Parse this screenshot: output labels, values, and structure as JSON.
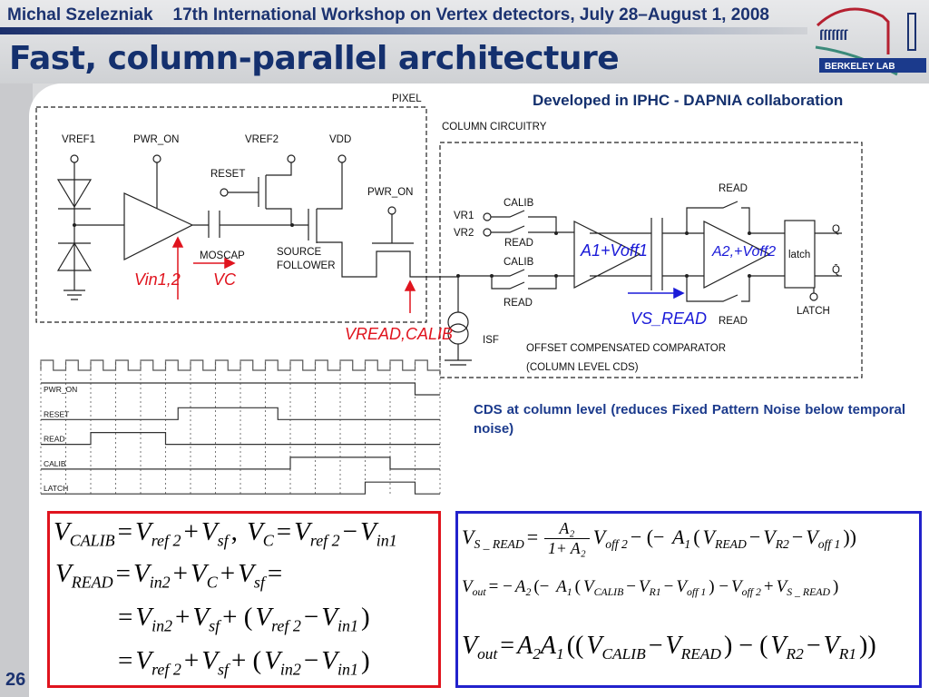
{
  "header": {
    "author": "Michal Szelezniak",
    "event": "17th International Workshop on Vertex detectors, July 28–August 1, 2008",
    "title": "Fast, column-parallel architecture",
    "logo_text": "BERKELEY LAB"
  },
  "slide_number": "26",
  "collaboration": "Developed in IPHC - DAPNIA collaboration",
  "cds_note": "CDS at column level (reduces Fixed Pattern Noise below temporal noise)",
  "pixel": {
    "box_label": "PIXEL",
    "vref1": "VREF1",
    "pwr_on": "PWR_ON",
    "vref2": "VREF2",
    "vdd": "VDD",
    "reset": "RESET",
    "pwr_on2": "PWR_ON",
    "moscap": "MOSCAP",
    "sf1": "SOURCE",
    "sf2": "FOLLOWER",
    "vin": "Vin1,2",
    "vc": "VC",
    "vread": "VREAD,CALIB"
  },
  "column": {
    "box_label": "COLUMN CIRCUITRY",
    "vr1": "VR1",
    "vr2": "VR2",
    "calib1": "CALIB",
    "read1": "READ",
    "calib2": "CALIB",
    "read2": "READ",
    "amp1": "A1+Voff1",
    "amp2": "A2,+Voff2",
    "read_top": "READ",
    "read_bot": "READ",
    "latch": "latch",
    "q": "Q",
    "qbar": "Q̄",
    "latch_in": "LATCH",
    "vsread": "VS_READ",
    "isf": "ISF",
    "comp1": "OFFSET COMPENSATED COMPARATOR",
    "comp2": "(COLUMN LEVEL CDS)"
  },
  "timing": {
    "clock_periods": 16,
    "signals": [
      {
        "name": "PWR_ON",
        "high": [
          [
            0,
            15
          ]
        ]
      },
      {
        "name": "RESET",
        "high": [
          [
            5.5,
            9.5
          ]
        ]
      },
      {
        "name": "READ",
        "high": [
          [
            2,
            5
          ]
        ]
      },
      {
        "name": "CALIB",
        "high": [
          [
            10,
            14
          ]
        ]
      },
      {
        "name": "LATCH",
        "high": [
          [
            13,
            15
          ]
        ]
      }
    ]
  },
  "equations_left": [
    [
      {
        "v": "V",
        "s": "CALIB"
      },
      {
        "o": "="
      },
      {
        "v": "V",
        "s": "ref 2"
      },
      {
        "o": "+"
      },
      {
        "v": "V",
        "s": "sf"
      },
      {
        "o": ", "
      },
      {
        "v": "V",
        "s": "C"
      },
      {
        "o": "="
      },
      {
        "v": "V",
        "s": "ref 2"
      },
      {
        "o": "−"
      },
      {
        "v": "V",
        "s": "in1"
      }
    ],
    [
      {
        "v": "V",
        "s": "READ"
      },
      {
        "o": "="
      },
      {
        "v": "V",
        "s": "in2"
      },
      {
        "o": "+"
      },
      {
        "v": "V",
        "s": "C"
      },
      {
        "o": "+"
      },
      {
        "v": "V",
        "s": "sf"
      },
      {
        "o": "="
      }
    ],
    [
      {
        "o": "="
      },
      {
        "v": "V",
        "s": "in2"
      },
      {
        "o": "+"
      },
      {
        "v": "V",
        "s": "sf"
      },
      {
        "o": "+ ("
      },
      {
        "v": "V",
        "s": "ref 2"
      },
      {
        "o": "−"
      },
      {
        "v": "V",
        "s": "in1"
      },
      {
        "o": ")"
      }
    ],
    [
      {
        "o": "="
      },
      {
        "v": "V",
        "s": "ref 2"
      },
      {
        "o": "+"
      },
      {
        "v": "V",
        "s": "sf"
      },
      {
        "o": "+ ("
      },
      {
        "v": "V",
        "s": "in2"
      },
      {
        "o": "−"
      },
      {
        "v": "V",
        "s": "in1"
      },
      {
        "o": ")"
      }
    ]
  ],
  "equations_right": [
    [
      {
        "v": "V",
        "s": "S _ READ"
      },
      {
        "o": "="
      },
      {
        "frac": [
          "A₂",
          "1+ A₂"
        ]
      },
      {
        "v": "V",
        "s": "off 2"
      },
      {
        "o": "− (− "
      },
      {
        "v": "A",
        "s": "1"
      },
      {
        "o": "("
      },
      {
        "v": "V",
        "s": "READ"
      },
      {
        "o": "−"
      },
      {
        "v": "V",
        "s": "R2"
      },
      {
        "o": "−"
      },
      {
        "v": "V",
        "s": "off 1"
      },
      {
        "o": "))"
      }
    ],
    [
      {
        "v": "V",
        "s": "out"
      },
      {
        "o": "= −"
      },
      {
        "v": "A",
        "s": "2"
      },
      {
        "o": "(− "
      },
      {
        "v": "A",
        "s": "1"
      },
      {
        "o": "("
      },
      {
        "v": "V",
        "s": "CALIB"
      },
      {
        "o": "−"
      },
      {
        "v": "V",
        "s": "R1"
      },
      {
        "o": "−"
      },
      {
        "v": "V",
        "s": "off 1"
      },
      {
        "o": ") −"
      },
      {
        "v": "V",
        "s": "off 2"
      },
      {
        "o": "+"
      },
      {
        "v": "V",
        "s": "S _ READ"
      },
      {
        "o": ")"
      }
    ],
    [
      {
        "v": "V",
        "s": "out"
      },
      {
        "o": "="
      },
      {
        "v": "A",
        "s": "2"
      },
      {
        "v": "A",
        "s": "1"
      },
      {
        "o": "(("
      },
      {
        "v": "V",
        "s": "CALIB"
      },
      {
        "o": "−"
      },
      {
        "v": "V",
        "s": "READ"
      },
      {
        "o": ") − ("
      },
      {
        "v": "V",
        "s": "R2"
      },
      {
        "o": "−"
      },
      {
        "v": "V",
        "s": "R1"
      },
      {
        "o": "))"
      }
    ]
  ],
  "colors": {
    "title": "#14306e",
    "annotation_red": "#e0141e",
    "annotation_blue": "#1a1ad8",
    "left_box": "#e0141e",
    "right_box": "#2222cc"
  }
}
